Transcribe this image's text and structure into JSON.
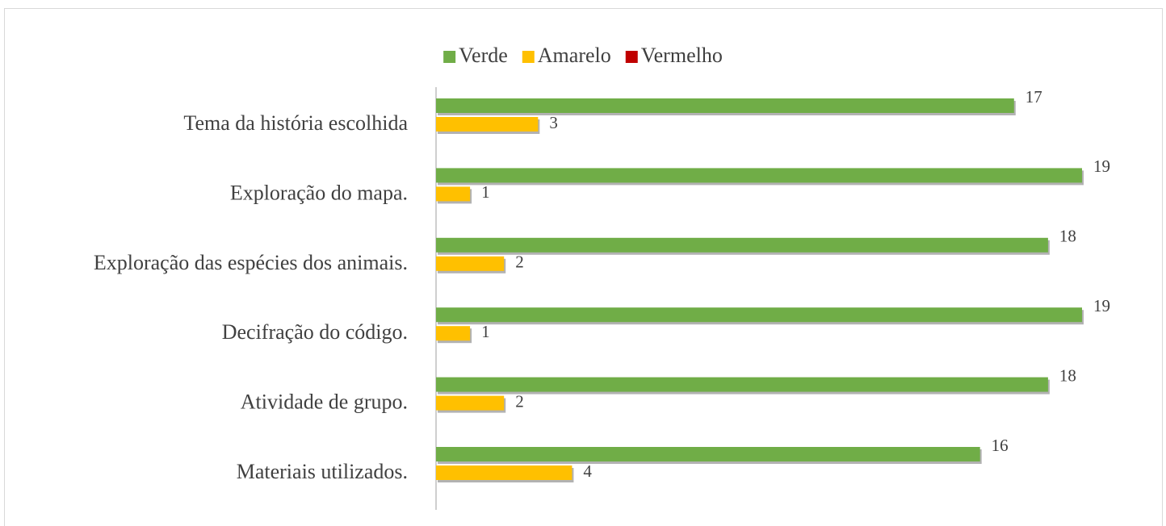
{
  "chart_data": {
    "type": "hbar",
    "categories": [
      "Tema da história escolhida",
      "Exploração do mapa.",
      "Exploração das espécies dos animais.",
      "Decifração do código.",
      "Atividade de grupo.",
      "Materiais utilizados."
    ],
    "series": [
      {
        "name": "Verde",
        "color": "#70ad47",
        "values": [
          17,
          19,
          18,
          19,
          18,
          16
        ]
      },
      {
        "name": "Amarelo",
        "color": "#ffc000",
        "values": [
          3,
          1,
          2,
          1,
          2,
          4
        ]
      },
      {
        "name": "Vermelho",
        "color": "#c00000",
        "values": [
          0,
          0,
          0,
          0,
          0,
          0
        ]
      }
    ],
    "xlim": [
      0,
      19
    ],
    "legend": "top"
  }
}
